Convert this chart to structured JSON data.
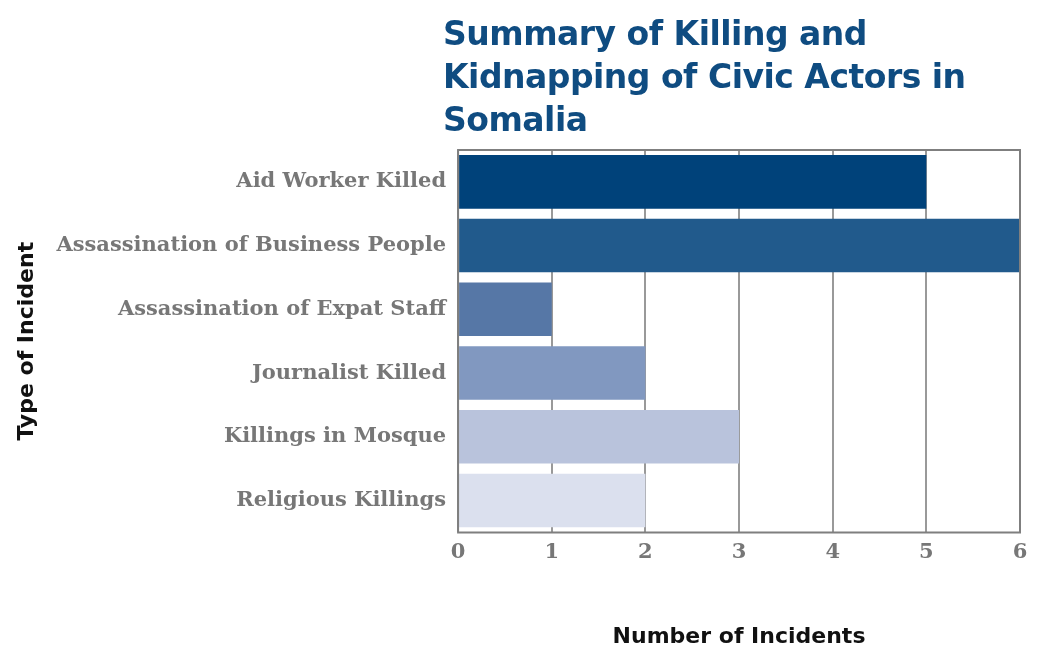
{
  "chart_data": {
    "type": "bar",
    "orientation": "horizontal",
    "title": "Summary of Killing and Kidnapping of Civic Actors in Somalia",
    "xlabel": "Number of Incidents",
    "ylabel": "Type of Incident",
    "categories": [
      "Aid Worker Killed",
      "Assassination of Business People",
      "Assassination of Expat Staff",
      "Journalist Killed",
      "Killings in Mosque",
      "Religious Killings"
    ],
    "values": [
      5,
      6,
      1,
      2,
      3,
      2
    ],
    "colors": [
      "#00427a",
      "#215a8c",
      "#5677a6",
      "#8198c0",
      "#b9c3dc",
      "#dbe0ee"
    ],
    "xlim": [
      0,
      6
    ],
    "xticks": [
      0,
      1,
      2,
      3,
      4,
      5,
      6
    ],
    "grid": "x",
    "legend": false
  }
}
